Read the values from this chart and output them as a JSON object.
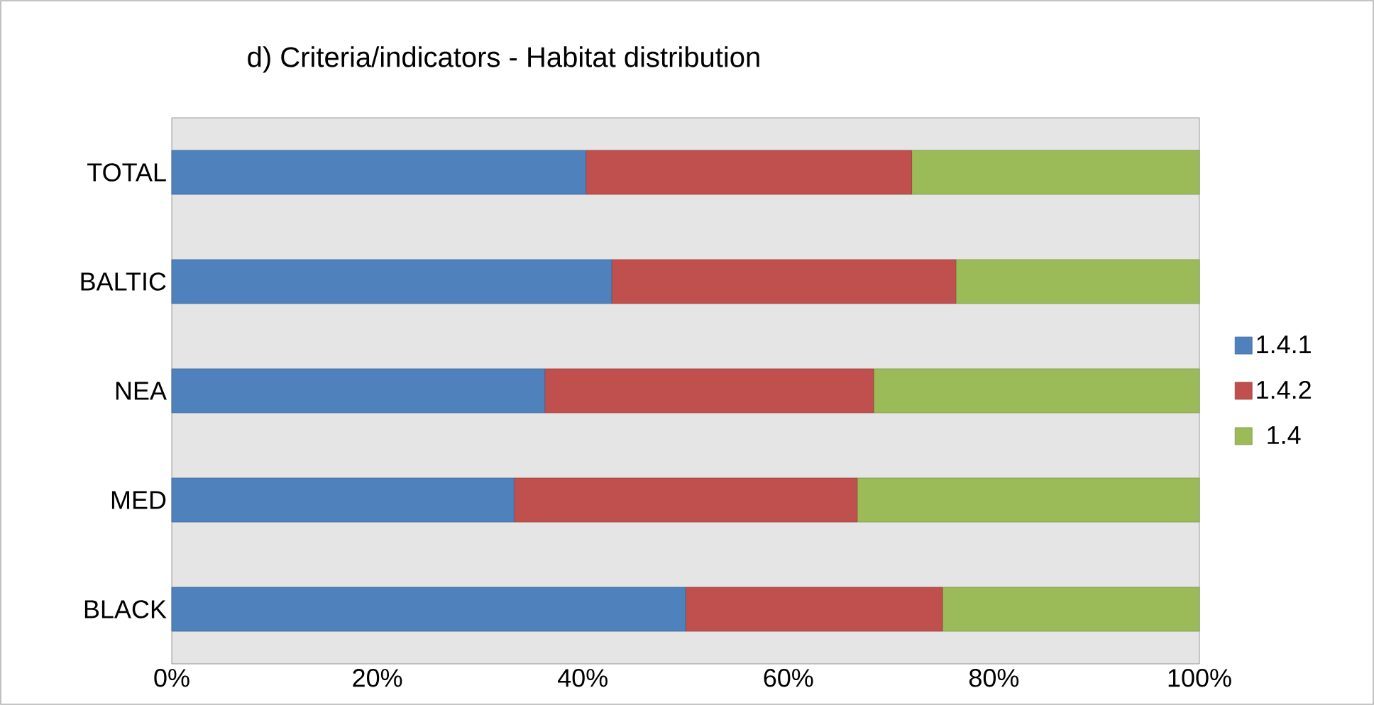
{
  "chart_data": {
    "type": "bar",
    "orientation": "horizontal",
    "stacked": true,
    "title": "d) Criteria/indicators - Habitat distribution",
    "categories": [
      "TOTAL",
      "BALTIC",
      "NEA",
      "MED",
      "BLACK"
    ],
    "series": [
      {
        "name": "1.4.1",
        "color": "#4f81bd",
        "values": [
          40.3,
          42.8,
          36.3,
          33.3,
          50
        ]
      },
      {
        "name": "1.4.2",
        "color": "#c0504d",
        "values": [
          31.7,
          33.5,
          32.0,
          33.4,
          25
        ]
      },
      {
        "name": "1.4",
        "color": "#9bbb59",
        "values": [
          28.0,
          23.7,
          31.7,
          33.3,
          25
        ]
      }
    ],
    "xlim": [
      0,
      100
    ],
    "xticks": [
      {
        "value": 0,
        "label": "0%"
      },
      {
        "value": 20,
        "label": "20%"
      },
      {
        "value": 40,
        "label": "40%"
      },
      {
        "value": 60,
        "label": "60%"
      },
      {
        "value": 80,
        "label": "80%"
      },
      {
        "value": 100,
        "label": "100%"
      }
    ],
    "grid": false,
    "legend": "right"
  }
}
